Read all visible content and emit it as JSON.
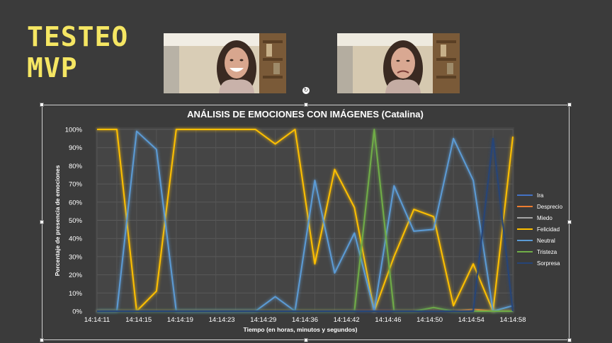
{
  "slide": {
    "title_line1": "TESTEO",
    "title_line2": "MVP"
  },
  "images": [
    {
      "name": "photo-smiling"
    },
    {
      "name": "photo-sad"
    }
  ],
  "chart_data": {
    "type": "line",
    "title": "ANÁLISIS DE EMOCIONES CON IMÁGENES (Catalina)",
    "xlabel": "Tiempo (en horas, minutos y segundos)",
    "ylabel": "Porcentaje de presencia de emociones",
    "y_ticks": [
      "0%",
      "10%",
      "20%",
      "30%",
      "40%",
      "50%",
      "60%",
      "70%",
      "80%",
      "90%",
      "100%"
    ],
    "x_tick_labels": [
      "14:14:11",
      "14:14:15",
      "14:14:19",
      "14:14:23",
      "14:14:29",
      "14:14:36",
      "14:14:42",
      "14:14:46",
      "14:14:50",
      "14:14:54",
      "14:14:58"
    ],
    "ylim": [
      0,
      100
    ],
    "x_count": 22,
    "grid": true,
    "legend_position": "right",
    "series": [
      {
        "name": "Ira",
        "color": "#4472c4",
        "values": [
          0,
          0,
          0,
          0,
          0,
          0,
          0,
          0,
          0,
          0,
          0,
          0,
          0,
          0,
          0,
          0,
          0,
          0,
          0,
          0,
          0,
          0
        ]
      },
      {
        "name": "Desprecio",
        "color": "#ed7d31",
        "values": [
          0,
          0,
          0,
          0,
          0,
          0,
          0,
          0,
          0,
          0,
          0,
          0,
          0,
          0,
          0,
          0,
          0,
          0,
          0,
          1,
          0,
          0
        ]
      },
      {
        "name": "Miedo",
        "color": "#a5a5a5",
        "values": [
          0,
          0,
          0,
          0,
          0,
          0,
          0,
          0,
          0,
          0,
          0,
          0,
          0,
          0,
          0,
          0,
          0,
          0,
          0,
          0,
          0,
          0
        ]
      },
      {
        "name": "Felicidad",
        "color": "#ffc000",
        "values": [
          100,
          100,
          0,
          11,
          100,
          100,
          100,
          100,
          100,
          92,
          100,
          26,
          78,
          57,
          0,
          30,
          56,
          52,
          3,
          26,
          0,
          96
        ]
      },
      {
        "name": "Neutral",
        "color": "#5b9bd5",
        "values": [
          0,
          0,
          99,
          89,
          0,
          0,
          0,
          0,
          0,
          8,
          0,
          72,
          21,
          43,
          0,
          69,
          44,
          45,
          95,
          72,
          0,
          3
        ]
      },
      {
        "name": "Tristeza",
        "color": "#70ad47",
        "values": [
          0,
          0,
          0,
          0,
          0,
          0,
          0,
          0,
          0,
          0,
          0,
          0,
          0,
          0,
          100,
          0,
          0,
          2,
          0,
          0,
          0,
          0
        ]
      },
      {
        "name": "Sorpresa",
        "color": "#264478",
        "values": [
          0,
          0,
          0,
          0,
          0,
          0,
          0,
          0,
          0,
          0,
          0,
          0,
          0,
          0,
          0,
          0,
          0,
          0,
          0,
          0,
          95,
          0
        ]
      }
    ]
  }
}
